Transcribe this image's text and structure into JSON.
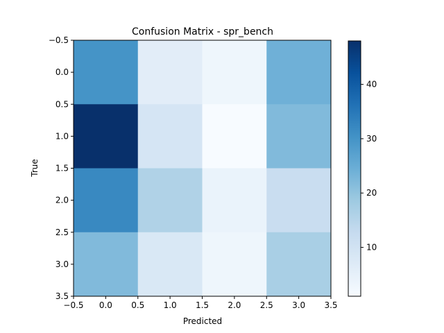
{
  "chart_data": {
    "type": "heatmap",
    "title": "Confusion Matrix - spr_bench",
    "xlabel": "Predicted",
    "ylabel": "True",
    "colormap": "Blues",
    "matrix": [
      [
        30,
        6,
        3,
        24
      ],
      [
        48,
        9,
        1,
        22
      ],
      [
        32,
        16,
        4,
        12
      ],
      [
        22,
        8,
        3,
        17
      ]
    ],
    "xlim": [
      -0.5,
      3.5
    ],
    "ylim": [
      3.5,
      -0.5
    ],
    "xticks": [
      "−0.5",
      "0.0",
      "0.5",
      "1.0",
      "1.5",
      "2.0",
      "2.5",
      "3.0",
      "3.5"
    ],
    "yticks": [
      "−0.5",
      "0.0",
      "0.5",
      "1.0",
      "1.5",
      "2.0",
      "2.5",
      "3.0",
      "3.5"
    ],
    "colorbar": {
      "min": 1,
      "max": 48,
      "ticks": [
        10,
        20,
        30,
        40
      ],
      "tick_labels": [
        "10",
        "20",
        "30",
        "40"
      ]
    }
  }
}
